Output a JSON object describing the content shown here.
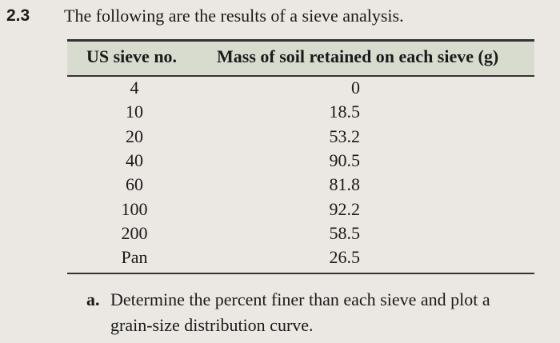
{
  "problem": {
    "number": "2.3",
    "statement": "The following are the results of a sieve analysis."
  },
  "table": {
    "headers": [
      "US sieve no.",
      "Mass of soil retained on each sieve (g)"
    ],
    "rows": [
      [
        "4",
        "0"
      ],
      [
        "10",
        "18.5"
      ],
      [
        "20",
        "53.2"
      ],
      [
        "40",
        "90.5"
      ],
      [
        "60",
        "81.8"
      ],
      [
        "100",
        "92.2"
      ],
      [
        "200",
        "58.5"
      ],
      [
        "Pan",
        "26.5"
      ]
    ]
  },
  "parts": [
    {
      "label": "a.",
      "text": "Determine the percent finer than each sieve and plot a",
      "text2": "grain-size distribution curve."
    }
  ]
}
